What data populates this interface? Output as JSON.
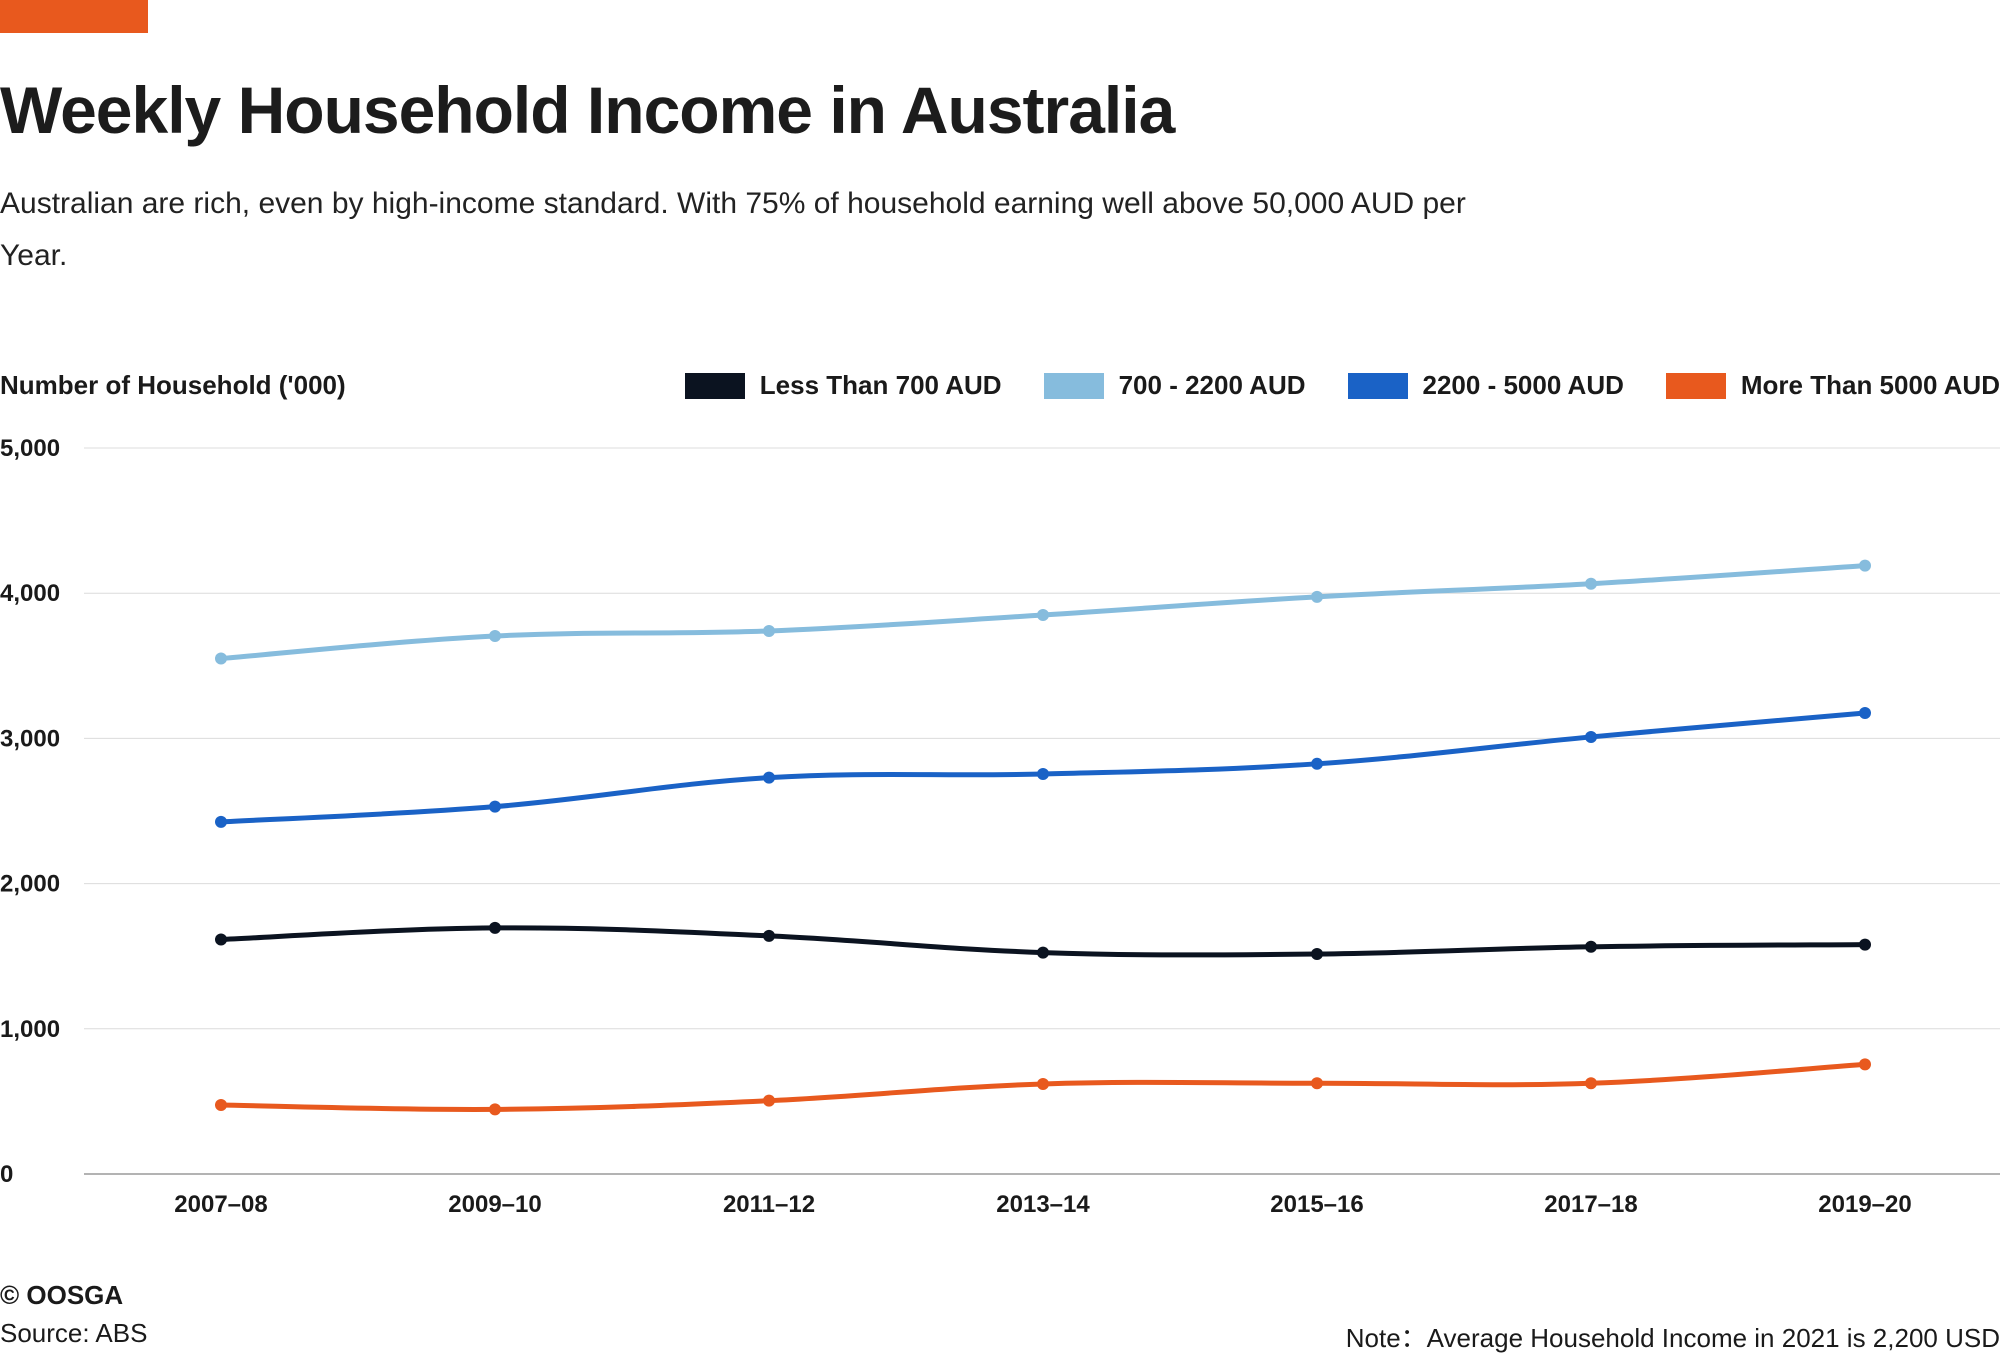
{
  "header": {
    "title": "Weekly Household Income in Australia",
    "subtitle": "Australian are rich, even by high-income standard. With 75% of household earning well above 50,000 AUD per Year.",
    "accent_color": "#E8591E"
  },
  "chart_data": {
    "type": "line",
    "ylabel": "Number of Household ('000)",
    "categories": [
      "2007–08",
      "2009–10",
      "2011–12",
      "2013–14",
      "2015–16",
      "2017–18",
      "2019–20"
    ],
    "ylim": [
      0,
      5000
    ],
    "yticks": [
      0,
      1000,
      2000,
      3000,
      4000,
      5000
    ],
    "ytick_labels": [
      "0",
      "1,000",
      "2,000",
      "3,000",
      "4,000",
      "5,000"
    ],
    "grid": true,
    "legend_position": "top-right",
    "series": [
      {
        "name": "Less Than 700 AUD",
        "color": "#0B1320",
        "values": [
          1615,
          1695,
          1640,
          1525,
          1515,
          1565,
          1580
        ]
      },
      {
        "name": "700 - 2200 AUD",
        "color": "#86BCDD",
        "values": [
          3550,
          3705,
          3740,
          3850,
          3975,
          4065,
          4190
        ]
      },
      {
        "name": "2200 - 5000 AUD",
        "color": "#1A62C6",
        "values": [
          2425,
          2530,
          2730,
          2755,
          2825,
          3010,
          3175
        ]
      },
      {
        "name": "More Than 5000 AUD",
        "color": "#E8591E",
        "values": [
          475,
          445,
          505,
          620,
          625,
          625,
          755
        ]
      }
    ]
  },
  "footer": {
    "brand": "© OOSGA",
    "source": "Source: ABS",
    "note": "Note：Average Household Income in 2021 is 2,200 USD"
  }
}
